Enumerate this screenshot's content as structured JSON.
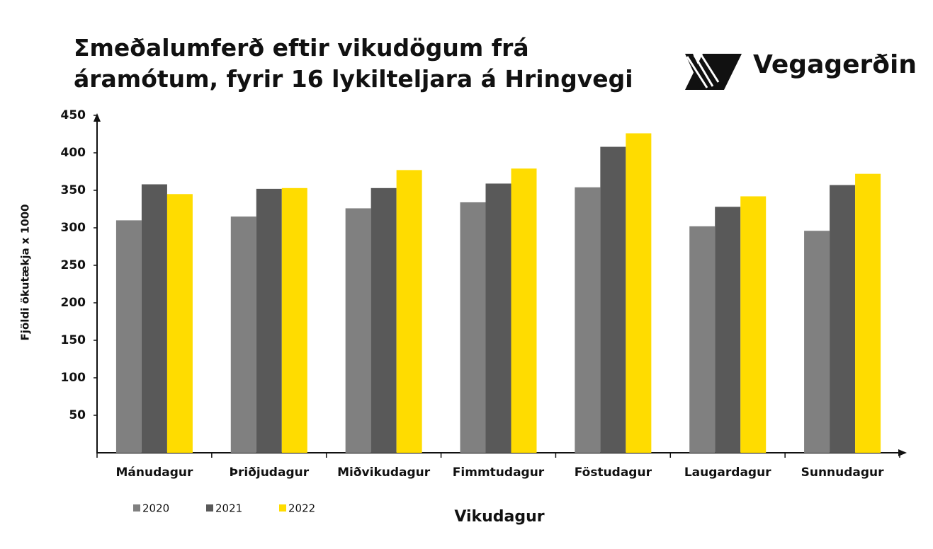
{
  "chart_data": {
    "type": "bar",
    "title": "Σmeðalumferð eftir vikudögum frá áramótum, fyrir 16 lykilteljara á Hringvegi",
    "logo": "Vegagerðin",
    "y_label": "Fjöldi ökutækja x 1000",
    "x_label": "Vikudagur",
    "categories": [
      "Mánudagur",
      "Þriðjudagur",
      "Miðvikudagur",
      "Fimmtudagur",
      "Föstudagur",
      "Laugardagur",
      "Sunnudagur"
    ],
    "series": [
      {
        "name": "2020",
        "color": "#808080",
        "values": [
          310,
          315,
          326,
          334,
          354,
          302,
          296
        ]
      },
      {
        "name": "2021",
        "color": "#595959",
        "values": [
          358,
          352,
          353,
          359,
          408,
          328,
          357
        ]
      },
      {
        "name": "2022",
        "color": "#ffdc00",
        "values": [
          345,
          353,
          377,
          379,
          426,
          342,
          372
        ]
      }
    ],
    "ylim": [
      0,
      450
    ],
    "yticks": [
      50,
      100,
      150,
      200,
      250,
      300,
      350,
      400,
      450
    ]
  }
}
